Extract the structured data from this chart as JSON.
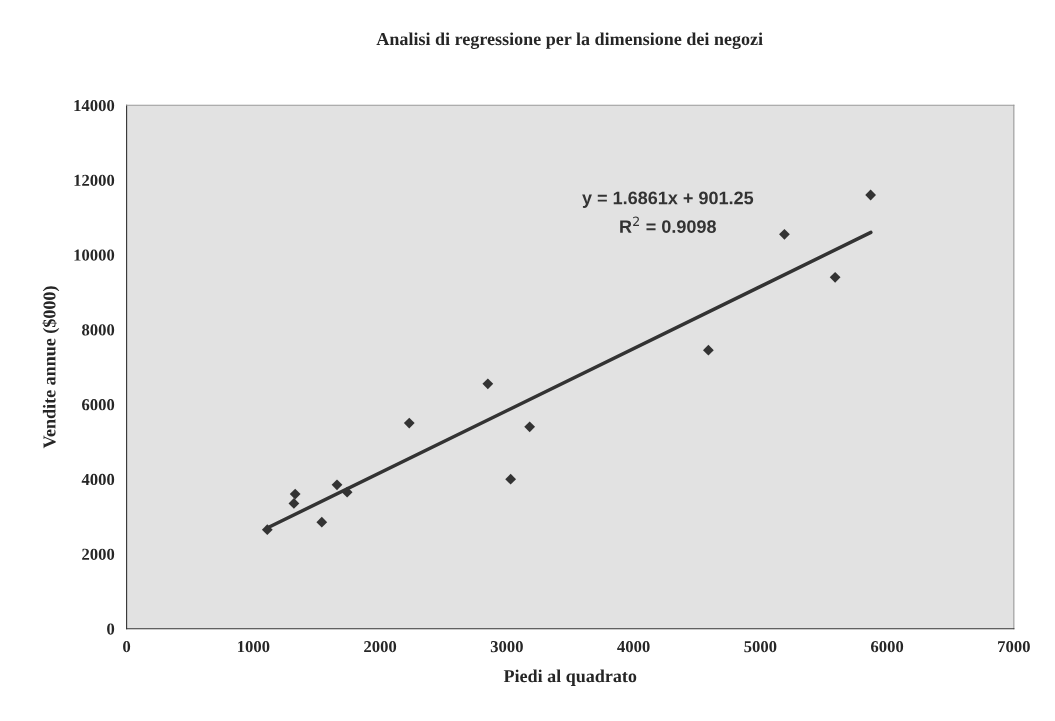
{
  "chart_data": {
    "type": "scatter",
    "title": "Analisi di regressione per la dimensione dei negozi",
    "xlabel": "Piedi al quadrato",
    "ylabel": "Vendite annue ($000)",
    "xlim": [
      0,
      7000
    ],
    "xticks": [
      0,
      1000,
      2000,
      3000,
      4000,
      5000,
      6000,
      7000
    ],
    "ylim": [
      0,
      14000
    ],
    "yticks": [
      0,
      2000,
      4000,
      6000,
      8000,
      10000,
      12000,
      14000
    ],
    "grid": false,
    "legend": false,
    "marker": "diamond",
    "annotations": [
      "y = 1.6861x + 901.25",
      "R$^{2}$ = 0.9098"
    ],
    "series": [
      {
        "color": "#333333",
        "x": [
          1110,
          1320,
          1330,
          1540,
          1660,
          1740,
          2230,
          2850,
          3030,
          3180,
          4590,
          5190,
          5590,
          5870
        ],
        "values": [
          2650,
          3350,
          3600,
          2850,
          3850,
          3650,
          5500,
          6550,
          4000,
          5400,
          7450,
          10550,
          9400,
          11600
        ]
      },
      {
        "type": "line",
        "color": "#333333",
        "marker": "none",
        "line_style": "solid",
        "x": [
          1113,
          5872
        ],
        "values": [
          2700,
          10600
        ]
      }
    ]
  }
}
